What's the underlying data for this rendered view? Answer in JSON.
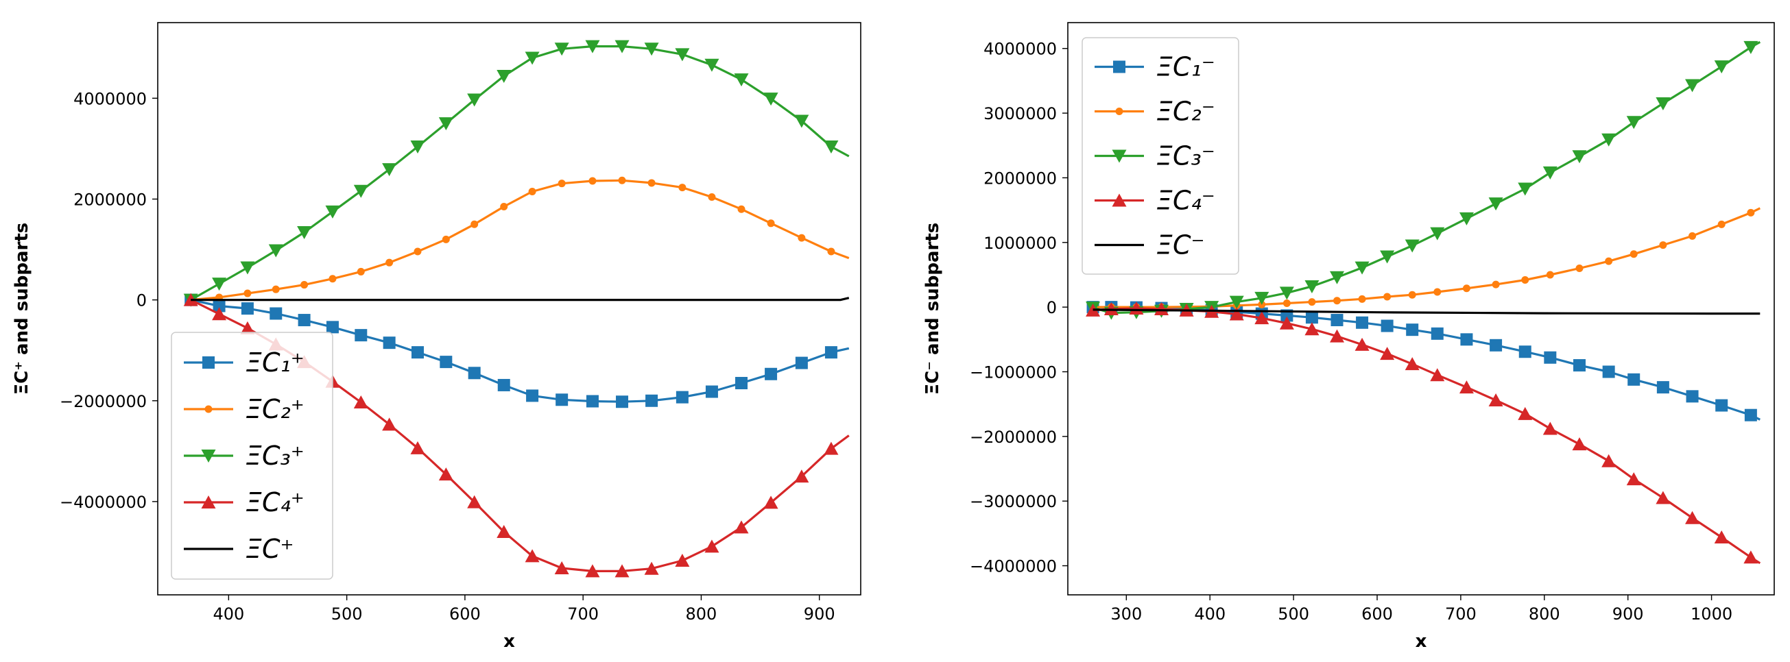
{
  "chart_data": [
    {
      "type": "line",
      "xlabel": "x",
      "ylabel": "ΞC⁺  and  subparts",
      "xlim": [
        340,
        935
      ],
      "ylim": [
        -5850000,
        5500000
      ],
      "xticks": [
        400,
        500,
        600,
        700,
        800,
        900
      ],
      "yticks": [
        -4000000,
        -2000000,
        0,
        2000000,
        4000000
      ],
      "xtick_labels": [
        "400",
        "500",
        "600",
        "700",
        "800",
        "900"
      ],
      "ytick_labels": [
        "−4000000",
        "−2000000",
        "0",
        "2000000",
        "4000000"
      ],
      "legend_position": "lower-left",
      "series": [
        {
          "name": "ΞC₁⁺",
          "color": "#1f77b4",
          "marker": "square",
          "x": [
            368,
            392,
            416,
            440,
            464,
            488,
            512,
            536,
            560,
            584,
            608,
            633,
            657,
            682,
            708,
            733,
            758,
            784,
            809,
            834,
            859,
            885,
            910,
            925
          ],
          "y": [
            0,
            -120000,
            -170000,
            -270000,
            -400000,
            -540000,
            -700000,
            -850000,
            -1040000,
            -1230000,
            -1450000,
            -1690000,
            -1900000,
            -1980000,
            -2010000,
            -2020000,
            -2000000,
            -1930000,
            -1820000,
            -1650000,
            -1470000,
            -1250000,
            -1040000,
            -960000
          ]
        },
        {
          "name": "ΞC₂⁺",
          "color": "#ff7f0e",
          "marker": "circle",
          "x": [
            368,
            392,
            416,
            440,
            464,
            488,
            512,
            536,
            560,
            584,
            608,
            633,
            657,
            682,
            708,
            733,
            758,
            784,
            809,
            834,
            859,
            885,
            910,
            925
          ],
          "y": [
            0,
            50000,
            130000,
            210000,
            300000,
            420000,
            560000,
            740000,
            960000,
            1200000,
            1500000,
            1850000,
            2150000,
            2310000,
            2360000,
            2370000,
            2320000,
            2230000,
            2040000,
            1800000,
            1520000,
            1230000,
            960000,
            830000
          ]
        },
        {
          "name": "ΞC₃⁺",
          "color": "#2ca02c",
          "marker": "triangle-down",
          "x": [
            368,
            392,
            416,
            440,
            464,
            488,
            512,
            536,
            560,
            584,
            608,
            633,
            657,
            682,
            708,
            733,
            758,
            784,
            809,
            834,
            859,
            885,
            910,
            925
          ],
          "y": [
            0,
            320000,
            640000,
            980000,
            1340000,
            1750000,
            2160000,
            2590000,
            3040000,
            3500000,
            3970000,
            4440000,
            4800000,
            4980000,
            5030000,
            5030000,
            4980000,
            4870000,
            4660000,
            4370000,
            3990000,
            3550000,
            3040000,
            2850000
          ]
        },
        {
          "name": "ΞC₄⁺",
          "color": "#d62728",
          "marker": "triangle-up",
          "x": [
            368,
            392,
            416,
            440,
            464,
            488,
            512,
            536,
            560,
            584,
            608,
            633,
            657,
            682,
            708,
            733,
            758,
            784,
            809,
            834,
            859,
            885,
            910,
            925
          ],
          "y": [
            0,
            -280000,
            -560000,
            -880000,
            -1230000,
            -1620000,
            -2030000,
            -2470000,
            -2940000,
            -3460000,
            -4010000,
            -4600000,
            -5080000,
            -5320000,
            -5380000,
            -5380000,
            -5330000,
            -5170000,
            -4890000,
            -4510000,
            -4020000,
            -3500000,
            -2950000,
            -2690000
          ]
        },
        {
          "name": "ΞC⁺",
          "color": "#000000",
          "marker": "none",
          "x": [
            368,
            500,
            700,
            900,
            918,
            925
          ],
          "y": [
            0,
            0,
            0,
            0,
            0,
            40000
          ]
        }
      ]
    },
    {
      "type": "line",
      "xlabel": "x",
      "ylabel": "ΞC⁻  and  subparts",
      "xlim": [
        230,
        1075
      ],
      "ylim": [
        -4450000,
        4400000
      ],
      "xticks": [
        300,
        400,
        500,
        600,
        700,
        800,
        900,
        1000
      ],
      "yticks": [
        -4000000,
        -3000000,
        -2000000,
        -1000000,
        0,
        1000000,
        2000000,
        3000000,
        4000000
      ],
      "xtick_labels": [
        "300",
        "400",
        "500",
        "600",
        "700",
        "800",
        "900",
        "1000"
      ],
      "ytick_labels": [
        "−4000000",
        "−3000000",
        "−2000000",
        "−1000000",
        "0",
        "1000000",
        "2000000",
        "3000000",
        "4000000"
      ],
      "legend_position": "upper-left",
      "series": [
        {
          "name": "ΞC₁⁻",
          "color": "#1f77b4",
          "marker": "square",
          "x": [
            260,
            282,
            312,
            342,
            372,
            402,
            432,
            462,
            492,
            522,
            552,
            582,
            612,
            642,
            672,
            707,
            742,
            777,
            807,
            842,
            877,
            907,
            942,
            977,
            1012,
            1047,
            1058
          ],
          "y": [
            0,
            0,
            -5000,
            -15000,
            -30000,
            -50000,
            -75000,
            -100000,
            -130000,
            -160000,
            -200000,
            -240000,
            -290000,
            -350000,
            -410000,
            -500000,
            -590000,
            -690000,
            -780000,
            -900000,
            -1000000,
            -1120000,
            -1240000,
            -1380000,
            -1520000,
            -1670000,
            -1740000
          ]
        },
        {
          "name": "ΞC₂⁻",
          "color": "#ff7f0e",
          "marker": "circle",
          "x": [
            260,
            282,
            312,
            342,
            372,
            402,
            432,
            462,
            492,
            522,
            552,
            582,
            612,
            642,
            672,
            707,
            742,
            777,
            807,
            842,
            877,
            907,
            942,
            977,
            1012,
            1047,
            1058
          ],
          "y": [
            0,
            0,
            0,
            0,
            5000,
            10000,
            25000,
            40000,
            60000,
            80000,
            100000,
            125000,
            160000,
            190000,
            235000,
            290000,
            350000,
            420000,
            500000,
            600000,
            710000,
            820000,
            960000,
            1100000,
            1280000,
            1460000,
            1530000
          ]
        },
        {
          "name": "ΞC₃⁻",
          "color": "#2ca02c",
          "marker": "triangle-down",
          "x": [
            260,
            282,
            312,
            342,
            372,
            402,
            432,
            462,
            492,
            522,
            552,
            582,
            612,
            642,
            672,
            707,
            742,
            777,
            807,
            842,
            877,
            907,
            942,
            977,
            1012,
            1047,
            1058
          ],
          "y": [
            -10000,
            -90000,
            -80000,
            -60000,
            -30000,
            0,
            80000,
            140000,
            220000,
            320000,
            460000,
            610000,
            780000,
            950000,
            1140000,
            1370000,
            1600000,
            1830000,
            2080000,
            2330000,
            2590000,
            2860000,
            3150000,
            3430000,
            3720000,
            4020000,
            4100000
          ]
        },
        {
          "name": "ΞC₄⁻",
          "color": "#d62728",
          "marker": "triangle-up",
          "x": [
            260,
            282,
            312,
            342,
            372,
            402,
            432,
            462,
            492,
            522,
            552,
            582,
            612,
            642,
            672,
            707,
            742,
            777,
            807,
            842,
            877,
            907,
            942,
            977,
            1012,
            1047,
            1058
          ],
          "y": [
            -50000,
            -30000,
            -20000,
            -30000,
            -50000,
            -70000,
            -110000,
            -170000,
            -250000,
            -340000,
            -450000,
            -580000,
            -720000,
            -880000,
            -1050000,
            -1240000,
            -1440000,
            -1650000,
            -1880000,
            -2120000,
            -2380000,
            -2660000,
            -2950000,
            -3260000,
            -3560000,
            -3870000,
            -3960000
          ]
        },
        {
          "name": "ΞC⁻",
          "color": "#000000",
          "marker": "none",
          "x": [
            260,
            400,
            600,
            800,
            1000,
            1058
          ],
          "y": [
            -40000,
            -55000,
            -80000,
            -95000,
            -100000,
            -100000
          ]
        }
      ]
    }
  ]
}
